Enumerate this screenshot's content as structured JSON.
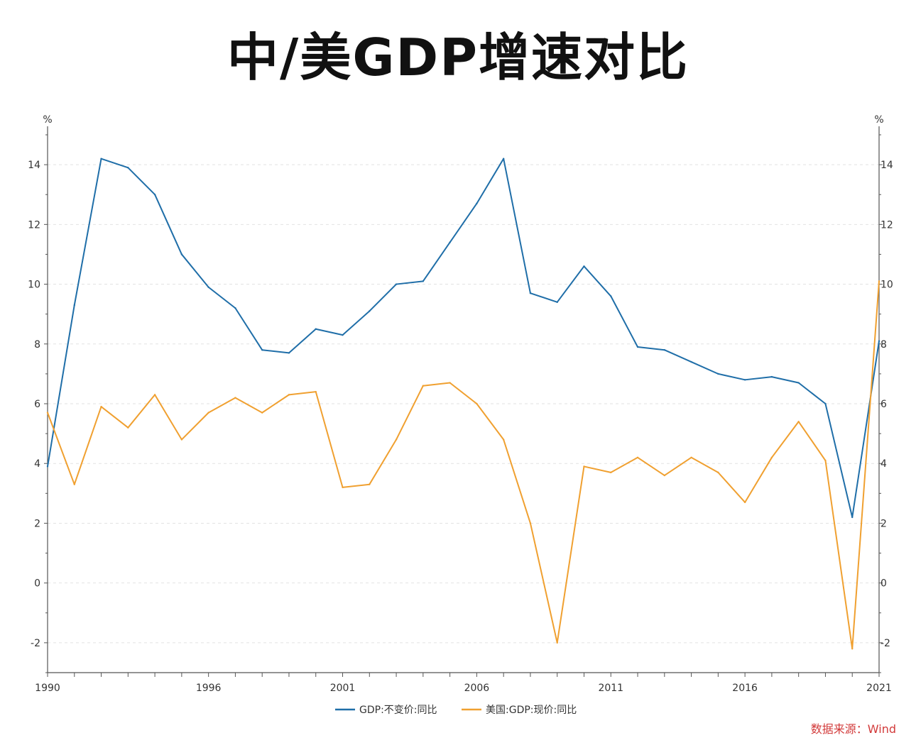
{
  "chart_data": {
    "type": "line",
    "title": "中/美GDP增速对比",
    "y_unit_left": "%",
    "y_unit_right": "%",
    "x_ticks": [
      "1990",
      "1996",
      "2001",
      "2006",
      "2011",
      "2016",
      "2021"
    ],
    "y_ticks": [
      "-2",
      "0",
      "2",
      "4",
      "6",
      "8",
      "10",
      "12",
      "14"
    ],
    "xlim": [
      1990,
      2021
    ],
    "ylim": [
      -3,
      15
    ],
    "grid": true,
    "legend_position": "bottom",
    "x": [
      1990,
      1991,
      1992,
      1993,
      1994,
      1995,
      1996,
      1997,
      1998,
      1999,
      2000,
      2001,
      2002,
      2003,
      2004,
      2005,
      2006,
      2007,
      2008,
      2009,
      2010,
      2011,
      2012,
      2013,
      2014,
      2015,
      2016,
      2017,
      2018,
      2019,
      2020,
      2021
    ],
    "series": [
      {
        "name": "GDP:不变价:同比",
        "color": "#1f6ea8",
        "values": [
          3.9,
          9.3,
          14.2,
          13.9,
          13.0,
          11.0,
          9.9,
          9.2,
          7.8,
          7.7,
          8.5,
          8.3,
          9.1,
          10.0,
          10.1,
          11.4,
          12.7,
          14.2,
          9.7,
          9.4,
          10.6,
          9.6,
          7.9,
          7.8,
          7.4,
          7.0,
          6.8,
          6.9,
          6.7,
          6.0,
          2.2,
          8.1
        ]
      },
      {
        "name": "美国:GDP:现价:同比",
        "color": "#f0a030",
        "values": [
          5.7,
          3.3,
          5.9,
          5.2,
          6.3,
          4.8,
          5.7,
          6.2,
          5.7,
          6.3,
          6.4,
          3.2,
          3.3,
          4.8,
          6.6,
          6.7,
          6.0,
          4.8,
          2.0,
          -2.0,
          3.9,
          3.7,
          4.2,
          3.6,
          4.2,
          3.7,
          2.7,
          4.2,
          5.4,
          4.1,
          -2.2,
          10.1
        ]
      }
    ],
    "source": "数据来源：Wind"
  }
}
